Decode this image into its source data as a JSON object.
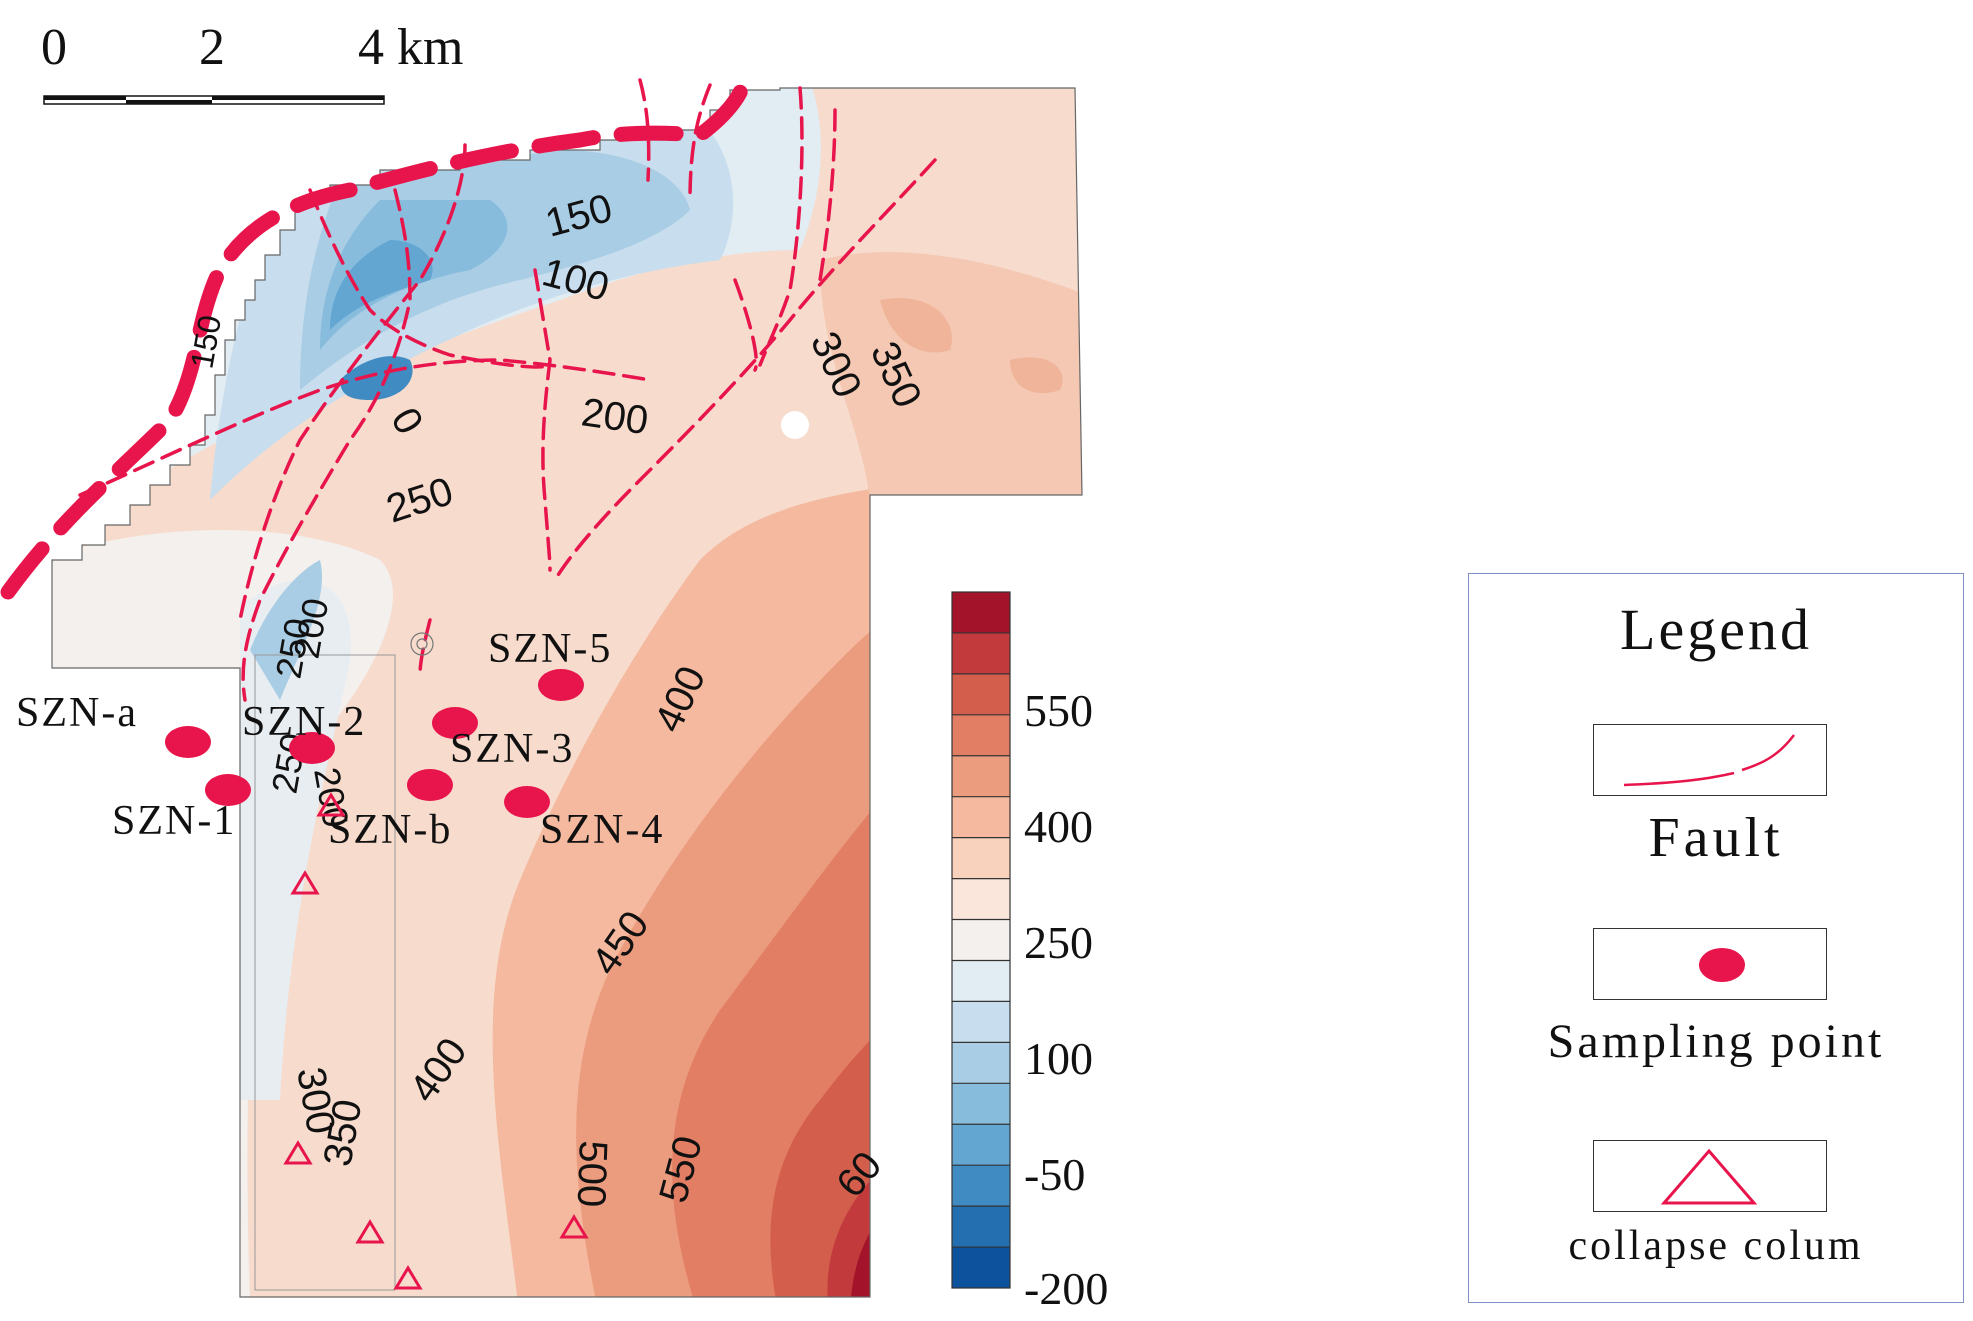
{
  "scale_bar": {
    "label_0": "0",
    "label_2": "2",
    "label_4": "4 km"
  },
  "contours": {
    "c150a": "150",
    "c100": "100",
    "c0": "0",
    "c200": "200",
    "c250": "250",
    "c300a": "300",
    "c350a": "350",
    "c400a": "400",
    "c450": "450",
    "c400b": "400",
    "c300b": "300",
    "c350b": "350",
    "c500": "500",
    "c550": "550",
    "c600": "60",
    "c_w1": "150",
    "c_w2": "250",
    "c_w3": "200",
    "c_w4": "250",
    "c_w5": "200"
  },
  "sampling_points": [
    {
      "label": "SZN-a"
    },
    {
      "label": "SZN-1"
    },
    {
      "label": "SZN-2"
    },
    {
      "label": "SZN-b"
    },
    {
      "label": "SZN-3"
    },
    {
      "label": "SZN-4"
    },
    {
      "label": "SZN-5"
    }
  ],
  "colorbar": {
    "ticks": [
      "550",
      "400",
      "250",
      "100",
      "-50",
      "-200"
    ],
    "colors": [
      "#a3142b",
      "#c33a3d",
      "#d35e4c",
      "#e27e64",
      "#ec9c7e",
      "#f4b99e",
      "#f8d2bd",
      "#fae6da",
      "#f3f0ee",
      "#e1ecf3",
      "#c8dded",
      "#a9cde5",
      "#88bcdd",
      "#63a6d2",
      "#3f8bc2",
      "#236fb0",
      "#0d529c"
    ]
  },
  "legend": {
    "title": "Legend",
    "fault": "Fault",
    "sampling": "Sampling point",
    "collapse": "collapse colum"
  },
  "colors": {
    "fault": "#e8154c",
    "sampling": "#e8154c"
  }
}
